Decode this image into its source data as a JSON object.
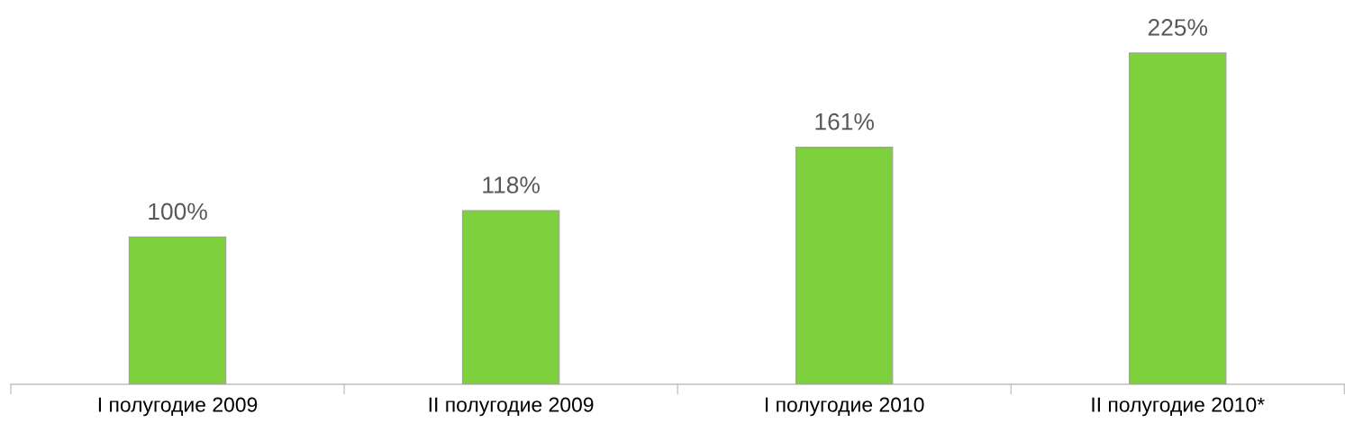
{
  "chart_data": {
    "type": "bar",
    "categories": [
      "I полугодие 2009",
      "II полугодие 2009",
      "I полугодие 2010",
      "II полугодие 2010*"
    ],
    "values": [
      100,
      118,
      161,
      225
    ],
    "color": "#7ed03c",
    "data_labels": true,
    "value_labels": [
      "100%",
      "118%",
      "161%",
      "225%"
    ],
    "grid": false,
    "legend": false
  }
}
